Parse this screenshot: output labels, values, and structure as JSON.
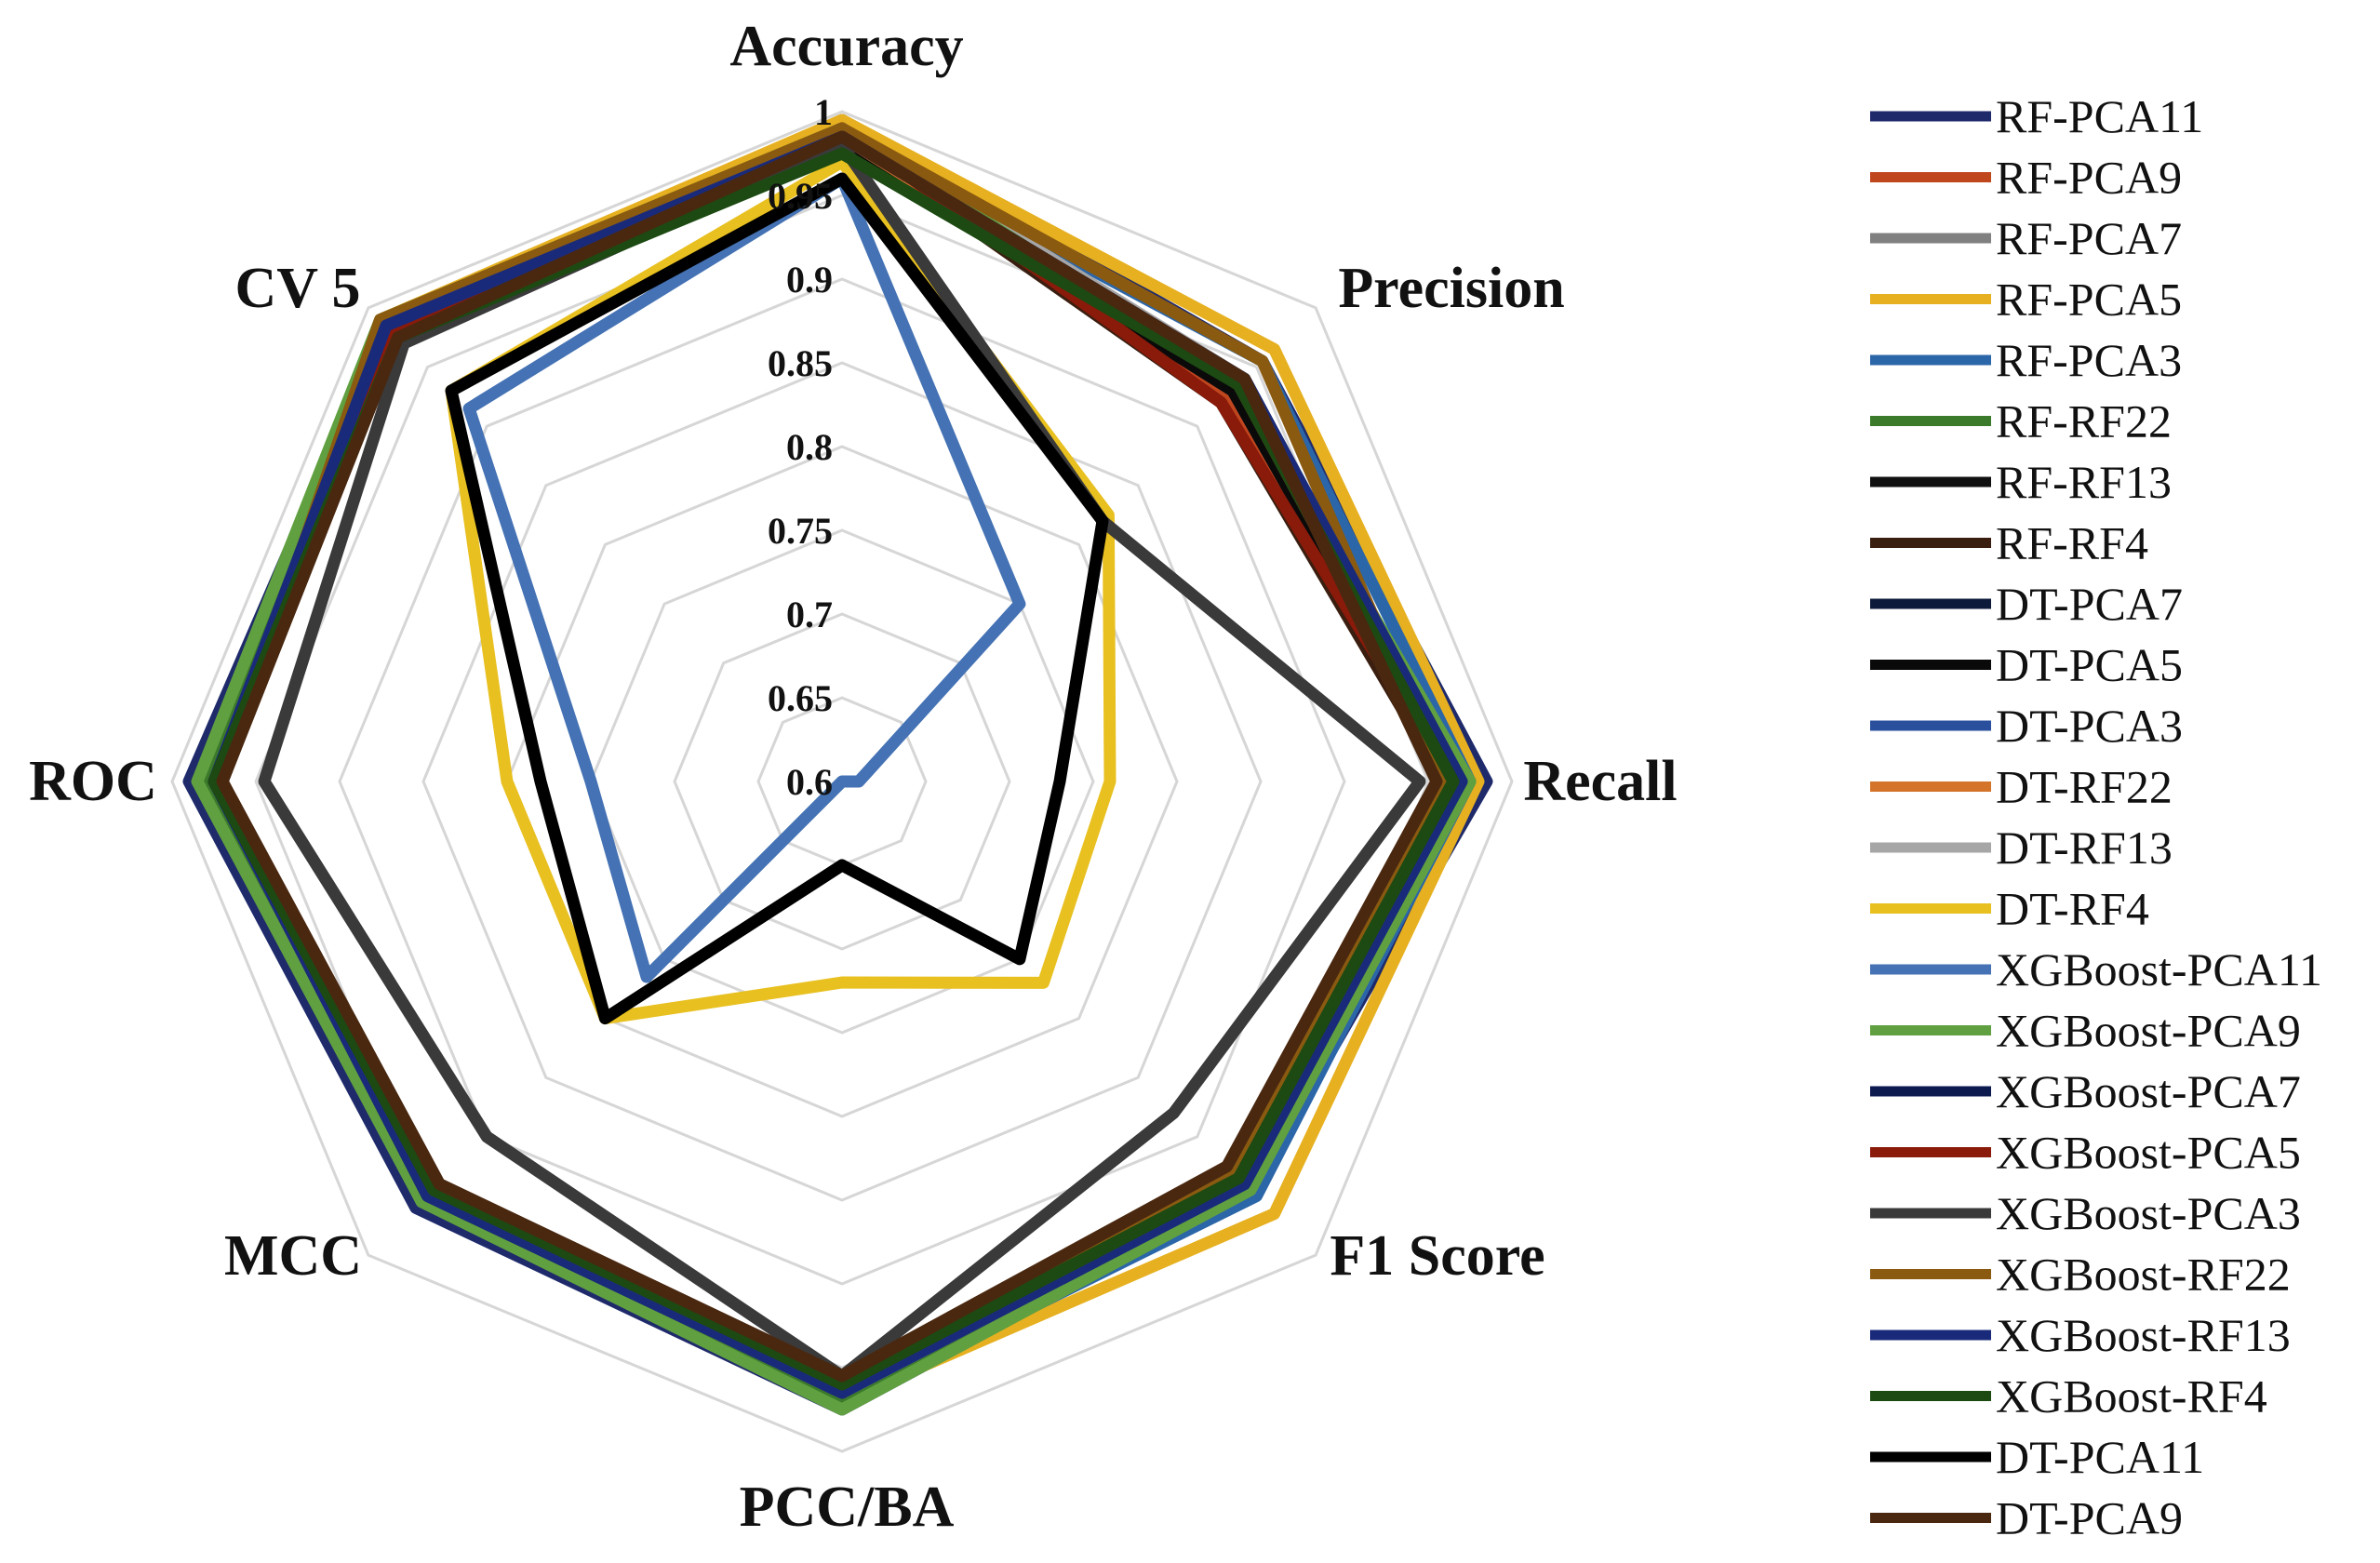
{
  "chart_data": {
    "type": "radar",
    "title": "",
    "axes": [
      "Accuracy",
      "Precision",
      "Recall",
      "F1 Score",
      "PCC/BA",
      "MCC",
      "ROC",
      "CV 5"
    ],
    "range": [
      0.6,
      1.0
    ],
    "ticks": [
      0.6,
      0.65,
      0.7,
      0.75,
      0.8,
      0.85,
      0.9,
      0.95,
      1
    ],
    "tick_labels": [
      "0.6",
      "0.65",
      "0.7",
      "0.75",
      "0.8",
      "0.85",
      "0.9",
      "0.95",
      "1"
    ],
    "grid": true,
    "legend_position": "right",
    "series": [
      {
        "name": "RF-PCA11",
        "color": "#1f2a6b",
        "values": [
          0.995,
          0.955,
          0.985,
          0.945,
          0.975,
          0.96,
          0.99,
          0.985
        ]
      },
      {
        "name": "RF-PCA9",
        "color": "#c0461e",
        "values": [
          0.99,
          0.925,
          0.97,
          0.93,
          0.965,
          0.945,
          0.98,
          0.98
        ]
      },
      {
        "name": "RF-PCA7",
        "color": "#808080",
        "values": [
          0.985,
          0.94,
          0.965,
          0.935,
          0.965,
          0.945,
          0.97,
          0.98
        ]
      },
      {
        "name": "RF-PCA5",
        "color": "#e6b020",
        "values": [
          0.995,
          0.965,
          0.98,
          0.965,
          0.97,
          0.955,
          0.975,
          0.99
        ]
      },
      {
        "name": "RF-PCA3",
        "color": "#2b66a8",
        "values": [
          0.985,
          0.955,
          0.975,
          0.95,
          0.97,
          0.955,
          0.98,
          0.985
        ]
      },
      {
        "name": "RF-RF22",
        "color": "#3b7a2a",
        "values": [
          0.99,
          0.93,
          0.975,
          0.94,
          0.97,
          0.95,
          0.98,
          0.985
        ]
      },
      {
        "name": "RF-RF13",
        "color": "#101010",
        "values": [
          0.985,
          0.94,
          0.97,
          0.935,
          0.96,
          0.945,
          0.975,
          0.98
        ]
      },
      {
        "name": "RF-RF4",
        "color": "#3a1e10",
        "values": [
          0.985,
          0.92,
          0.96,
          0.93,
          0.955,
          0.94,
          0.97,
          0.975
        ]
      },
      {
        "name": "DT-PCA7",
        "color": "#0d1a3a",
        "values": [
          0.98,
          0.93,
          0.965,
          0.93,
          0.96,
          0.945,
          0.97,
          0.98
        ]
      },
      {
        "name": "DT-PCA5",
        "color": "#0a0a0a",
        "values": [
          0.98,
          0.93,
          0.965,
          0.935,
          0.96,
          0.945,
          0.975,
          0.98
        ]
      },
      {
        "name": "DT-PCA3",
        "color": "#2a4f9c",
        "values": [
          0.985,
          0.94,
          0.97,
          0.94,
          0.965,
          0.95,
          0.975,
          0.98
        ]
      },
      {
        "name": "DT-RF22",
        "color": "#d4742a",
        "values": [
          0.985,
          0.935,
          0.965,
          0.935,
          0.96,
          0.945,
          0.975,
          0.98
        ]
      },
      {
        "name": "DT-RF13",
        "color": "#a6a6a6",
        "values": [
          0.99,
          0.94,
          0.97,
          0.94,
          0.965,
          0.95,
          0.975,
          0.985
        ]
      },
      {
        "name": "DT-RF4",
        "color": "#e8c020",
        "values": [
          0.97,
          0.825,
          0.76,
          0.77,
          0.72,
          0.8,
          0.8,
          0.93
        ]
      },
      {
        "name": "XGBoost-PCA11",
        "color": "#4472b4",
        "values": [
          0.96,
          0.75,
          0.61,
          0.6,
          0.6,
          0.765,
          0.75,
          0.915
        ]
      },
      {
        "name": "XGBoost-PCA9",
        "color": "#60a040",
        "values": [
          0.99,
          0.935,
          0.975,
          0.945,
          0.975,
          0.955,
          0.985,
          0.99
        ]
      },
      {
        "name": "XGBoost-PCA7",
        "color": "#0d1a50",
        "values": [
          0.985,
          0.94,
          0.97,
          0.935,
          0.965,
          0.95,
          0.975,
          0.985
        ]
      },
      {
        "name": "XGBoost-PCA5",
        "color": "#8a1a0a",
        "values": [
          0.99,
          0.92,
          0.965,
          0.935,
          0.96,
          0.945,
          0.975,
          0.98
        ]
      },
      {
        "name": "XGBoost-PCA3",
        "color": "#3a3a3a",
        "values": [
          0.98,
          0.82,
          0.945,
          0.88,
          0.955,
          0.9,
          0.945,
          0.97
        ]
      },
      {
        "name": "XGBoost-RF22",
        "color": "#8a5a10",
        "values": [
          0.99,
          0.955,
          0.96,
          0.93,
          0.955,
          0.945,
          0.97,
          0.99
        ]
      },
      {
        "name": "XGBoost-RF13",
        "color": "#1a2a7a",
        "values": [
          0.985,
          0.94,
          0.97,
          0.94,
          0.965,
          0.95,
          0.975,
          0.985
        ]
      },
      {
        "name": "XGBoost-RF4",
        "color": "#1c4a12",
        "values": [
          0.975,
          0.935,
          0.965,
          0.935,
          0.96,
          0.945,
          0.975,
          0.975
        ]
      },
      {
        "name": "DT-PCA11",
        "color": "#000000",
        "values": [
          0.96,
          0.82,
          0.73,
          0.75,
          0.65,
          0.8,
          0.78,
          0.93
        ]
      },
      {
        "name": "DT-PCA9",
        "color": "#4a2810",
        "values": [
          0.985,
          0.94,
          0.955,
          0.925,
          0.955,
          0.94,
          0.97,
          0.975
        ]
      }
    ]
  }
}
